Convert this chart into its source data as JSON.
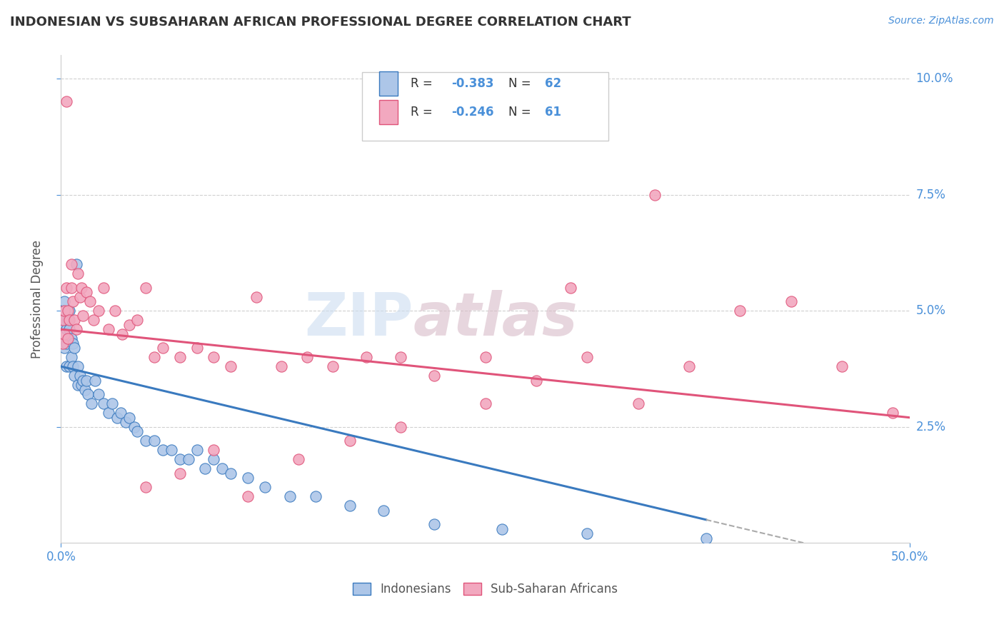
{
  "title": "INDONESIAN VS SUBSAHARAN AFRICAN PROFESSIONAL DEGREE CORRELATION CHART",
  "source": "Source: ZipAtlas.com",
  "ylabel": "Professional Degree",
  "legend_label1": "Indonesians",
  "legend_label2": "Sub-Saharan Africans",
  "R1": -0.383,
  "N1": 62,
  "R2": -0.246,
  "N2": 61,
  "color_blue": "#adc6e8",
  "color_pink": "#f2a8bf",
  "line_color_blue": "#3a7abf",
  "line_color_pink": "#e0547a",
  "title_color": "#333333",
  "axis_color": "#4a90d9",
  "xlim": [
    0,
    0.5
  ],
  "ylim": [
    0,
    0.105
  ],
  "blue_line_start_y": 0.038,
  "blue_line_end_x": 0.38,
  "blue_line_end_y": 0.005,
  "pink_line_start_y": 0.046,
  "pink_line_end_x": 0.5,
  "pink_line_end_y": 0.027,
  "indonesian_x": [
    0.001,
    0.001,
    0.001,
    0.002,
    0.002,
    0.002,
    0.003,
    0.003,
    0.003,
    0.004,
    0.004,
    0.005,
    0.005,
    0.005,
    0.006,
    0.006,
    0.007,
    0.007,
    0.008,
    0.008,
    0.009,
    0.01,
    0.01,
    0.011,
    0.012,
    0.013,
    0.014,
    0.015,
    0.016,
    0.018,
    0.02,
    0.022,
    0.025,
    0.028,
    0.03,
    0.033,
    0.035,
    0.038,
    0.04,
    0.043,
    0.045,
    0.05,
    0.055,
    0.06,
    0.065,
    0.07,
    0.075,
    0.08,
    0.085,
    0.09,
    0.095,
    0.1,
    0.11,
    0.12,
    0.135,
    0.15,
    0.17,
    0.19,
    0.22,
    0.26,
    0.31,
    0.38
  ],
  "indonesian_y": [
    0.05,
    0.047,
    0.043,
    0.052,
    0.048,
    0.042,
    0.046,
    0.043,
    0.038,
    0.048,
    0.044,
    0.05,
    0.046,
    0.038,
    0.044,
    0.04,
    0.043,
    0.038,
    0.042,
    0.036,
    0.06,
    0.038,
    0.034,
    0.036,
    0.034,
    0.035,
    0.033,
    0.035,
    0.032,
    0.03,
    0.035,
    0.032,
    0.03,
    0.028,
    0.03,
    0.027,
    0.028,
    0.026,
    0.027,
    0.025,
    0.024,
    0.022,
    0.022,
    0.02,
    0.02,
    0.018,
    0.018,
    0.02,
    0.016,
    0.018,
    0.016,
    0.015,
    0.014,
    0.012,
    0.01,
    0.01,
    0.008,
    0.007,
    0.004,
    0.003,
    0.002,
    0.001
  ],
  "subsaharan_x": [
    0.001,
    0.001,
    0.002,
    0.002,
    0.003,
    0.003,
    0.004,
    0.004,
    0.005,
    0.006,
    0.006,
    0.007,
    0.008,
    0.009,
    0.01,
    0.011,
    0.012,
    0.013,
    0.015,
    0.017,
    0.019,
    0.022,
    0.025,
    0.028,
    0.032,
    0.036,
    0.04,
    0.045,
    0.05,
    0.055,
    0.06,
    0.07,
    0.08,
    0.09,
    0.1,
    0.115,
    0.13,
    0.145,
    0.16,
    0.18,
    0.2,
    0.22,
    0.25,
    0.28,
    0.31,
    0.34,
    0.37,
    0.4,
    0.43,
    0.46,
    0.49,
    0.35,
    0.3,
    0.25,
    0.2,
    0.17,
    0.14,
    0.11,
    0.09,
    0.07,
    0.05
  ],
  "subsaharan_y": [
    0.048,
    0.043,
    0.05,
    0.045,
    0.095,
    0.055,
    0.05,
    0.044,
    0.048,
    0.06,
    0.055,
    0.052,
    0.048,
    0.046,
    0.058,
    0.053,
    0.055,
    0.049,
    0.054,
    0.052,
    0.048,
    0.05,
    0.055,
    0.046,
    0.05,
    0.045,
    0.047,
    0.048,
    0.055,
    0.04,
    0.042,
    0.04,
    0.042,
    0.04,
    0.038,
    0.053,
    0.038,
    0.04,
    0.038,
    0.04,
    0.04,
    0.036,
    0.04,
    0.035,
    0.04,
    0.03,
    0.038,
    0.05,
    0.052,
    0.038,
    0.028,
    0.075,
    0.055,
    0.03,
    0.025,
    0.022,
    0.018,
    0.01,
    0.02,
    0.015,
    0.012
  ]
}
